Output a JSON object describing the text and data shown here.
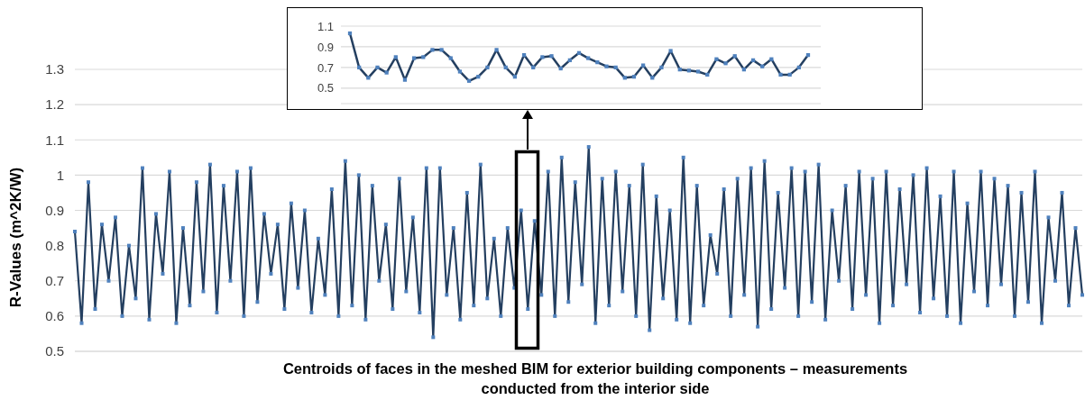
{
  "chart_data": [
    {
      "type": "line",
      "ylabel": "R-Values (m^2K/W)",
      "xlabel": "Centroids of faces in the meshed BIM for exterior building components – measurements conducted from the interior side",
      "marker": "square",
      "grid": "y",
      "ylim": [
        0.5,
        1.3
      ],
      "yticks": [
        0.5,
        0.6,
        0.7,
        0.8,
        0.9,
        1,
        1.1,
        1.2,
        1.3
      ],
      "categories": [
        null,
        null,
        null,
        null,
        null,
        null,
        null,
        null,
        null,
        null,
        null,
        null,
        null,
        null,
        null,
        null,
        null,
        null,
        null,
        null,
        null,
        null,
        null,
        null,
        null,
        null,
        null,
        null,
        null,
        null,
        null,
        null,
        null,
        null,
        null,
        null,
        null,
        null,
        null,
        null,
        null,
        null,
        null,
        null,
        null,
        null,
        null,
        null,
        null,
        null,
        null,
        null,
        null,
        null,
        null,
        null,
        null,
        null,
        null,
        null,
        null,
        null,
        null,
        null,
        null,
        null,
        null,
        null,
        null,
        null,
        null,
        null,
        null,
        null,
        null,
        null,
        null,
        null,
        null,
        null,
        null,
        null,
        null,
        null,
        null,
        null,
        null,
        null,
        null,
        null,
        null,
        null,
        null,
        null,
        null,
        null,
        null,
        null,
        null,
        null,
        null,
        null,
        null,
        null,
        null,
        null,
        null,
        null,
        null,
        null,
        null,
        null,
        null,
        null,
        null,
        null,
        null,
        null,
        null,
        null,
        null,
        null,
        null,
        null,
        null,
        null,
        null,
        null,
        null,
        null,
        null,
        null,
        null,
        null,
        null,
        null,
        null,
        null,
        null,
        null,
        null,
        null,
        null,
        null,
        null,
        null,
        null,
        null,
        null,
        null
      ],
      "series": [
        {
          "color": "#243f60",
          "values": [
            0.84,
            0.58,
            0.98,
            0.62,
            0.86,
            0.7,
            0.88,
            0.6,
            0.8,
            0.65,
            1.02,
            0.59,
            0.89,
            0.72,
            1.01,
            0.58,
            0.85,
            0.63,
            0.98,
            0.67,
            1.03,
            0.61,
            0.97,
            0.7,
            1.01,
            0.6,
            1.02,
            0.64,
            0.89,
            0.72,
            0.86,
            0.62,
            0.92,
            0.68,
            0.9,
            0.61,
            0.82,
            0.66,
            0.96,
            0.6,
            1.04,
            0.63,
            1.0,
            0.59,
            0.97,
            0.7,
            0.86,
            0.62,
            0.99,
            0.67,
            0.88,
            0.61,
            1.02,
            0.54,
            1.02,
            0.66,
            0.85,
            0.59,
            0.95,
            0.63,
            1.03,
            0.65,
            0.82,
            0.6,
            0.85,
            0.68,
            0.9,
            0.62,
            0.87,
            0.66,
            1.01,
            0.6,
            1.05,
            0.64,
            0.98,
            0.69,
            1.08,
            0.58,
            0.99,
            0.63,
            1.01,
            0.67,
            0.97,
            0.6,
            1.03,
            0.56,
            0.94,
            0.65,
            0.9,
            0.59,
            1.05,
            0.58,
            0.97,
            0.63,
            0.83,
            0.72,
            0.96,
            0.6,
            0.99,
            0.66,
            1.02,
            0.57,
            1.04,
            0.62,
            0.95,
            0.68,
            1.02,
            0.6,
            1.01,
            0.64,
            1.03,
            0.59,
            0.9,
            0.7,
            0.97,
            0.62,
            1.01,
            0.66,
            0.99,
            0.58,
            1.01,
            0.63,
            0.96,
            0.69,
            1.0,
            0.61,
            1.02,
            0.65,
            0.94,
            0.6,
            1.01,
            0.58,
            0.92,
            0.67,
            1.01,
            0.63,
            0.99,
            0.69,
            0.97,
            0.6,
            0.95,
            0.64,
            1.01,
            0.58,
            0.88,
            0.7,
            0.95,
            0.63,
            0.85,
            0.66
          ]
        }
      ]
    },
    {
      "type": "line",
      "marker": "square",
      "grid": "y",
      "ylim": [
        0.35,
        1.1
      ],
      "yticks": [
        0.5,
        0.7,
        0.9,
        1.1
      ],
      "categories": [
        null,
        null,
        null,
        null,
        null,
        null,
        null,
        null,
        null,
        null,
        null,
        null,
        null,
        null,
        null,
        null,
        null,
        null,
        null,
        null,
        null,
        null,
        null,
        null,
        null,
        null,
        null,
        null,
        null,
        null,
        null,
        null,
        null,
        null,
        null,
        null,
        null,
        null,
        null,
        null,
        null,
        null,
        null,
        null,
        null,
        null,
        null,
        null,
        null,
        null,
        null
      ],
      "series": [
        {
          "color": "#243f60",
          "values": [
            1.03,
            0.7,
            0.6,
            0.7,
            0.65,
            0.8,
            0.58,
            0.79,
            0.8,
            0.87,
            0.87,
            0.79,
            0.66,
            0.57,
            0.61,
            0.7,
            0.87,
            0.7,
            0.61,
            0.82,
            0.7,
            0.8,
            0.81,
            0.69,
            0.77,
            0.84,
            0.79,
            0.75,
            0.71,
            0.7,
            0.6,
            0.61,
            0.72,
            0.6,
            0.7,
            0.86,
            0.68,
            0.67,
            0.66,
            0.63,
            0.78,
            0.74,
            0.81,
            0.68,
            0.77,
            0.71,
            0.78,
            0.63,
            0.63,
            0.7,
            0.82
          ]
        }
      ]
    }
  ]
}
